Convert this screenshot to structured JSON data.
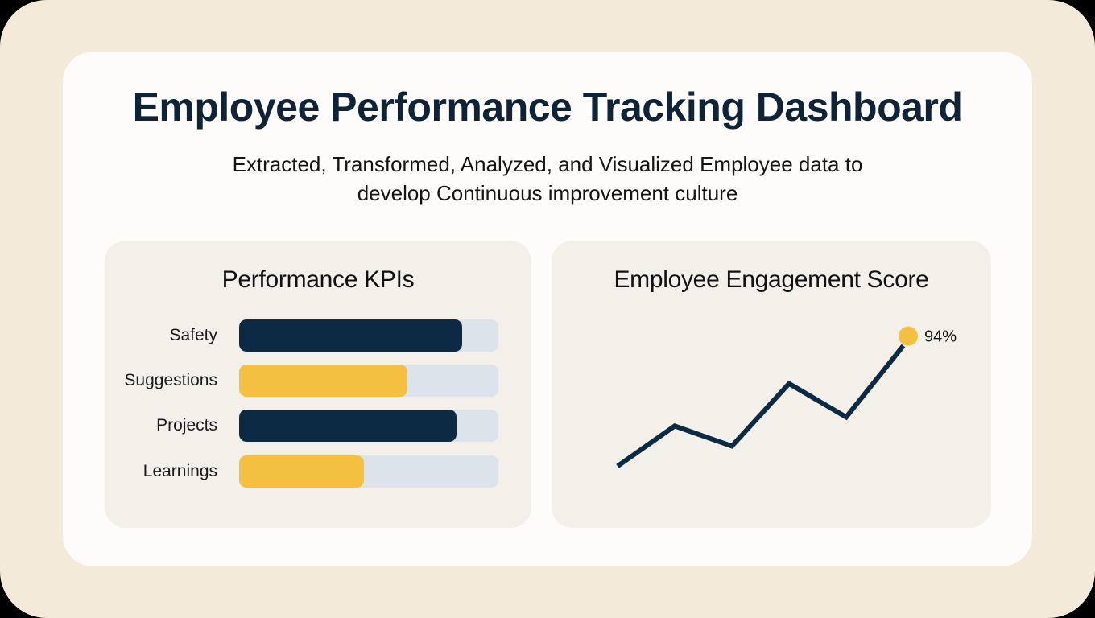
{
  "header": {
    "title": "Employee Performance Tracking Dashboard",
    "subtitle_line1": "Extracted, Transformed, Analyzed, and Visualized Employee data to",
    "subtitle_line2": "develop Continuous improvement culture"
  },
  "colors": {
    "navy": "#0c2a43",
    "gold": "#f4c042",
    "track": "#dce3ea",
    "panel": "#f3f0ea",
    "frame": "#f3ead9"
  },
  "kpi_panel": {
    "title": "Performance KPIs",
    "items": [
      {
        "label": "Safety",
        "value": 86,
        "color": "#0c2a43"
      },
      {
        "label": "Suggestions",
        "value": 65,
        "color": "#f4c042"
      },
      {
        "label": "Projects",
        "value": 84,
        "color": "#0c2a43"
      },
      {
        "label": "Learnings",
        "value": 48,
        "color": "#f4c042"
      }
    ]
  },
  "engagement_panel": {
    "title": "Employee Engagement Score",
    "final_label": "94%"
  },
  "chart_data": [
    {
      "type": "bar",
      "orientation": "horizontal",
      "title": "Performance KPIs",
      "categories": [
        "Safety",
        "Suggestions",
        "Projects",
        "Learnings"
      ],
      "values": [
        86,
        65,
        84,
        48
      ],
      "xlim": [
        0,
        100
      ],
      "xlabel": "",
      "ylabel": "",
      "grid": false,
      "legend": "none"
    },
    {
      "type": "line",
      "title": "Employee Engagement Score",
      "x": [
        1,
        2,
        3,
        4,
        5,
        6
      ],
      "values": [
        40,
        58,
        49,
        77,
        62,
        94
      ],
      "annotations": [
        {
          "point": 6,
          "text": "94%"
        }
      ],
      "xlabel": "",
      "ylabel": "",
      "ylim": [
        30,
        100
      ],
      "grid": false,
      "legend": "none"
    }
  ]
}
